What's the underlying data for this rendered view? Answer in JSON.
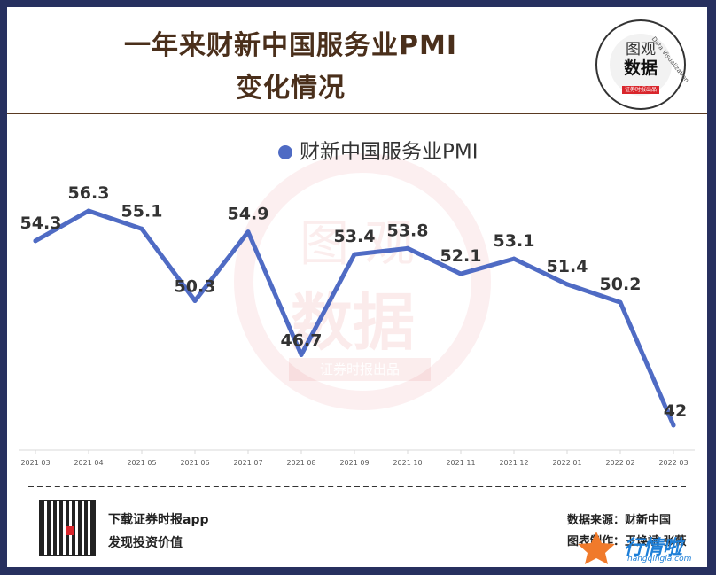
{
  "header": {
    "title_line1": "一年来财新中国服务业PMI",
    "title_line2": "变化情况"
  },
  "logo": {
    "line1": "图观",
    "line2": "数据",
    "tag": "证券时报出品",
    "ring_text": "Data Visualization"
  },
  "watermark": {
    "line1": "图 观",
    "line2": "数据",
    "badge": "证券时报出品"
  },
  "chart_data": {
    "type": "line",
    "title": "一年来财新中国服务业PMI变化情况",
    "categories": [
      "2021 03",
      "2021 04",
      "2021 05",
      "2021 06",
      "2021 07",
      "2021 08",
      "2021 09",
      "2021 10",
      "2021 11",
      "2021 12",
      "2022 01",
      "2022 02",
      "2022 03"
    ],
    "series": [
      {
        "name": "财新中国服务业PMI",
        "values": [
          54.3,
          56.3,
          55.1,
          50.3,
          54.9,
          46.7,
          53.4,
          53.8,
          52.1,
          53.1,
          51.4,
          50.2,
          42
        ],
        "labels": [
          "54.3",
          "56.3",
          "55.1",
          "50.3",
          "54.9",
          "46.7",
          "53.4",
          "53.8",
          "52.1",
          "53.1",
          "51.4",
          "50.2",
          "42"
        ]
      }
    ],
    "xlabel": "",
    "ylabel": "",
    "ylim": [
      38,
      60
    ],
    "legend": "top-center",
    "grid": false,
    "colors": {
      "line": "#4f6bc4",
      "label": "#333333",
      "axis": "#d9d9d9",
      "tick": "#595959"
    }
  },
  "footer": {
    "app_line1": "下载证券时报app",
    "app_line2": "发现投资价值",
    "source": "数据来源：财新中国",
    "maker": "图表制作：王焕斌 张薇",
    "corner_brand": "行情啦",
    "corner_url": "hangqingla.com"
  }
}
